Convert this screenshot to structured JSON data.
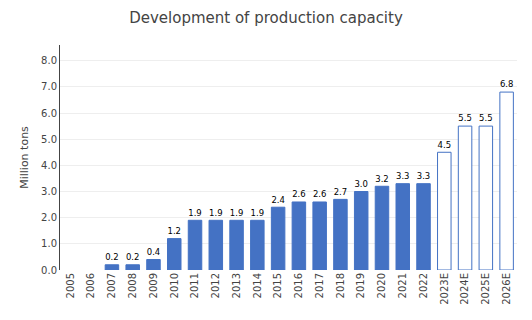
{
  "chart_data": {
    "type": "bar",
    "title": "Development of production capacity",
    "ylabel": "Million tons",
    "categories": [
      "2005",
      "2006",
      "2007",
      "2008",
      "2009",
      "2010",
      "2011",
      "2012",
      "2013",
      "2014",
      "2015",
      "2016",
      "2017",
      "2018",
      "2019",
      "2020",
      "2021",
      "2022",
      "2023E",
      "2024E",
      "2025E",
      "2026E"
    ],
    "values": [
      0,
      0,
      0.2,
      0.2,
      0.4,
      1.2,
      1.9,
      1.9,
      1.9,
      1.9,
      2.4,
      2.6,
      2.6,
      2.7,
      3.0,
      3.2,
      3.3,
      3.3,
      4.5,
      5.5,
      5.5,
      6.8
    ],
    "value_labels": [
      null,
      null,
      "0.2",
      "0.2",
      "0.4",
      "1.2",
      "1.9",
      "1.9",
      "1.9",
      "1.9",
      "2.4",
      "2.6",
      "2.6",
      "2.7",
      "3.0",
      "3.2",
      "3.3",
      "3.3",
      "4.5",
      "5.5",
      "5.5",
      "6.8"
    ],
    "data_labels": true,
    "color": "#4472C4",
    "colors": [
      "#4472C4",
      "#4472C4",
      "#4472C4",
      "#4472C4",
      "#4472C4",
      "#4472C4",
      "#4472C4",
      "#4472C4",
      "#4472C4",
      "#4472C4",
      "#4472C4",
      "#4472C4",
      "#4472C4",
      "#4472C4",
      "#4472C4",
      "#4472C4",
      "#4472C4",
      "#4472C4",
      "#FFFFFF",
      "#FFFFFF",
      "#FFFFFF",
      "#FFFFFF"
    ],
    "ylim": [
      0,
      8.6
    ],
    "yticks": [
      {
        "value": 0.0,
        "label": "0.0"
      },
      {
        "value": 1.0,
        "label": "1.0"
      },
      {
        "value": 2.0,
        "label": "2.0"
      },
      {
        "value": 3.0,
        "label": "3.0"
      },
      {
        "value": 4.0,
        "label": "4.0"
      },
      {
        "value": 5.0,
        "label": "5.0"
      },
      {
        "value": 6.0,
        "label": "6.0"
      },
      {
        "value": 7.0,
        "label": "7.0"
      },
      {
        "value": 8.0,
        "label": "8.0"
      }
    ],
    "grid": true
  }
}
